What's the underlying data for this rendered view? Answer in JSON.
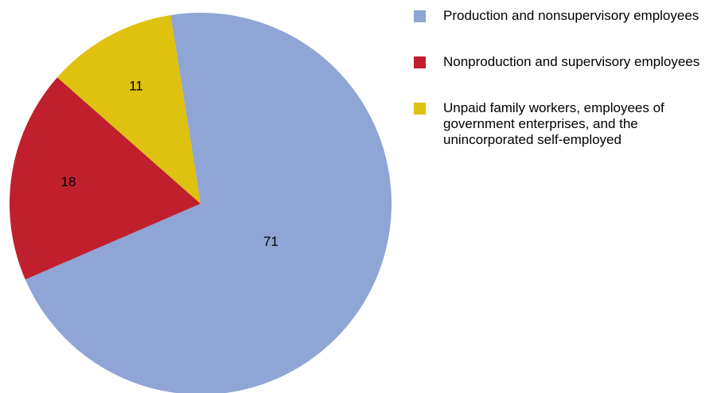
{
  "chart_data": {
    "type": "pie",
    "categories": [
      "Production and nonsupervisory employees",
      "Nonproduction and supervisory employees",
      "Unpaid family workers, employees of government enterprises, and the unincorporated self-employed"
    ],
    "values": [
      71,
      18,
      11
    ],
    "colors": [
      "#8ea5d6",
      "#c0202e",
      "#dfc10f"
    ],
    "legend": "right"
  }
}
